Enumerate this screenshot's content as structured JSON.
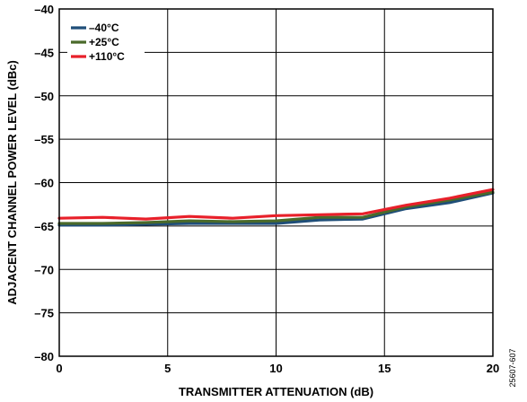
{
  "chart_data": {
    "type": "line",
    "xlabel": "TRANSMITTER ATTENUATION (dB)",
    "ylabel": "ADJACENT CHANNEL POWER LEVEL (dBc)",
    "xlim": [
      0,
      20
    ],
    "ylim": [
      -80,
      -40
    ],
    "x_ticks": [
      0,
      5,
      10,
      15,
      20
    ],
    "y_ticks": [
      -40,
      -45,
      -50,
      -55,
      -60,
      -65,
      -70,
      -75,
      -80
    ],
    "x_tick_labels": [
      "0",
      "5",
      "10",
      "15",
      "20"
    ],
    "y_tick_labels": [
      "–40",
      "–45",
      "–50",
      "–55",
      "–60",
      "–65",
      "–70",
      "–75",
      "–80"
    ],
    "grid": true,
    "legend_position": "top-left",
    "series": [
      {
        "name": "–40°C",
        "color": "#1f4e79",
        "x": [
          0,
          2,
          4,
          6,
          8,
          10,
          12,
          14,
          16,
          18,
          20
        ],
        "y": [
          -64.9,
          -64.9,
          -64.8,
          -64.7,
          -64.7,
          -64.7,
          -64.3,
          -64.2,
          -63.0,
          -62.3,
          -61.2
        ]
      },
      {
        "name": "+25°C",
        "color": "#4a6a2a",
        "x": [
          0,
          2,
          4,
          6,
          8,
          10,
          12,
          14,
          16,
          18,
          20
        ],
        "y": [
          -64.7,
          -64.7,
          -64.6,
          -64.4,
          -64.5,
          -64.4,
          -64.0,
          -64.0,
          -62.8,
          -62.0,
          -61.1
        ]
      },
      {
        "name": "+110°C",
        "color": "#e8202a",
        "x": [
          0,
          2,
          4,
          6,
          8,
          10,
          12,
          14,
          16,
          18,
          20
        ],
        "y": [
          -64.1,
          -64.0,
          -64.2,
          -63.9,
          -64.1,
          -63.8,
          -63.7,
          -63.6,
          -62.6,
          -61.8,
          -60.8
        ]
      }
    ]
  },
  "figure_id": "25607-607"
}
